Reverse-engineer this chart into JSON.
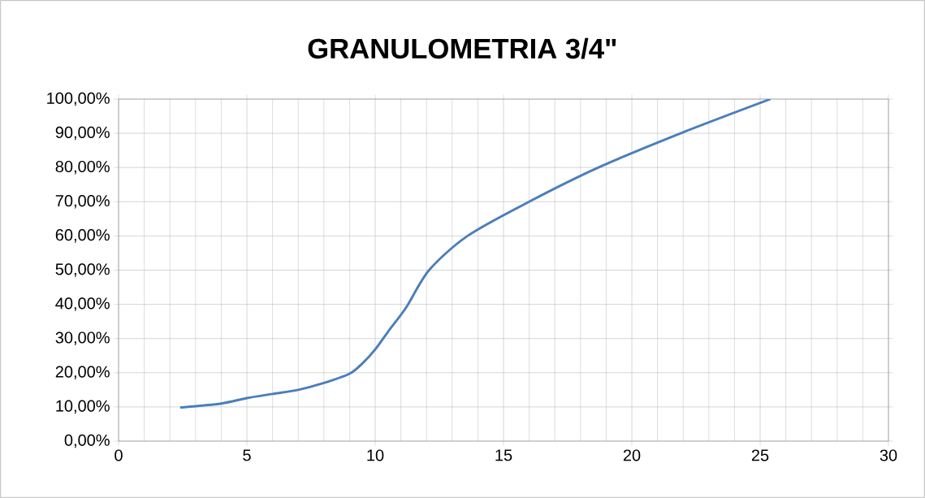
{
  "chart_data": {
    "type": "line",
    "title": "GRANULOMETRIA 3/4\"",
    "x": [
      2.4,
      4,
      5,
      6,
      7,
      8,
      9,
      9.5,
      10,
      10.5,
      11.2,
      12.1,
      13.6,
      16,
      18.7,
      21.9,
      25.4
    ],
    "series": [
      {
        "color": "#4a7ebb",
        "values": [
          9.8,
          11,
          12.6,
          13.8,
          15,
          17,
          19.7,
          22.7,
          26.8,
          32,
          39,
          50,
          60,
          70,
          80,
          90,
          100
        ]
      }
    ],
    "xlim": [
      0,
      30
    ],
    "xticks": [
      0,
      5,
      10,
      15,
      20,
      25,
      30
    ],
    "ylim": [
      0,
      100
    ],
    "yticks": [
      {
        "value": 0,
        "label": "0,00%"
      },
      {
        "value": 10,
        "label": "10,00%"
      },
      {
        "value": 20,
        "label": "20,00%"
      },
      {
        "value": 30,
        "label": "30,00%"
      },
      {
        "value": 40,
        "label": "40,00%"
      },
      {
        "value": 50,
        "label": "50,00%"
      },
      {
        "value": 60,
        "label": "60,00%"
      },
      {
        "value": 70,
        "label": "70,00%"
      },
      {
        "value": 80,
        "label": "80,00%"
      },
      {
        "value": 90,
        "label": "90,00%"
      },
      {
        "value": 100,
        "label": "100,00%"
      }
    ],
    "grid": true,
    "marker": "none",
    "line_style": "solid"
  }
}
